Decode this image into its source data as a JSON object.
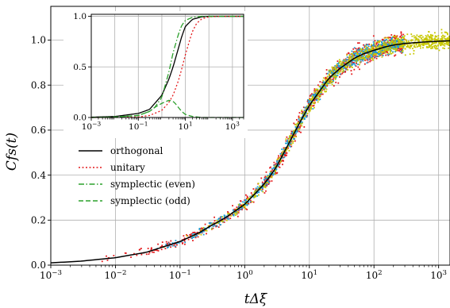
{
  "chart_data": [
    {
      "id": "main",
      "type": "scatter",
      "xlabel": "tΔξ",
      "ylabel": "Cfs(t)",
      "xscale": "log",
      "xlim": [
        0.001,
        1500
      ],
      "ylim": [
        0.0,
        1.15
      ],
      "grid": true,
      "legend_position": "center-left",
      "x_ticks": [
        {
          "value": 0.001,
          "base": "10",
          "exp": "−3"
        },
        {
          "value": 0.01,
          "base": "10",
          "exp": "−2"
        },
        {
          "value": 0.1,
          "base": "10",
          "exp": "−1"
        },
        {
          "value": 1,
          "base": "10",
          "exp": "0"
        },
        {
          "value": 10,
          "base": "10",
          "exp": "1"
        },
        {
          "value": 100,
          "base": "10",
          "exp": "2"
        },
        {
          "value": 1000,
          "base": "10",
          "exp": "3"
        }
      ],
      "y_ticks": [
        {
          "value": 0.0,
          "label": "0.0"
        },
        {
          "value": 0.2,
          "label": "0.2"
        },
        {
          "value": 0.4,
          "label": "0.4"
        },
        {
          "value": 0.6,
          "label": "0.6"
        },
        {
          "value": 0.8,
          "label": "0.8"
        },
        {
          "value": 1.0,
          "label": "1.0"
        }
      ],
      "scatter_series": [
        {
          "color": "#e41a1c",
          "x_range": [
            0.003,
            300
          ],
          "spread": 0.045
        },
        {
          "color": "#1f9fd4",
          "x_range": [
            0.03,
            300
          ],
          "spread": 0.03
        },
        {
          "color": "#c8c800",
          "x_range": [
            0.05,
            1500
          ],
          "spread": 0.035
        }
      ],
      "series": [
        {
          "name": "orthogonal",
          "color": "#000000",
          "style": "solid",
          "x": [
            0.001,
            0.003,
            0.01,
            0.03,
            0.1,
            0.2,
            0.3,
            0.5,
            1,
            2,
            3,
            5,
            7,
            10,
            15,
            20,
            30,
            50,
            70,
            100,
            150,
            200,
            300,
            500,
            1000,
            1500
          ],
          "y": [
            0.01,
            0.018,
            0.033,
            0.057,
            0.105,
            0.145,
            0.175,
            0.21,
            0.27,
            0.36,
            0.43,
            0.55,
            0.63,
            0.71,
            0.78,
            0.83,
            0.875,
            0.92,
            0.94,
            0.955,
            0.97,
            0.978,
            0.985,
            0.99,
            0.995,
            0.997
          ]
        },
        {
          "name": "unitary",
          "color": "#e41a1c",
          "style": "dotted"
        },
        {
          "name": "symplectic (even)",
          "color": "#2ca02c",
          "style": "dashdot"
        },
        {
          "name": "symplectic (odd)",
          "color": "#2ca02c",
          "style": "dashed"
        }
      ]
    },
    {
      "id": "inset",
      "type": "line",
      "xscale": "log",
      "xlim": [
        0.001,
        3000
      ],
      "ylim": [
        0.0,
        1.02
      ],
      "grid": true,
      "x_ticks": [
        {
          "value": 0.001,
          "base": "10",
          "exp": "−3"
        },
        {
          "value": 0.1,
          "base": "10",
          "exp": "−1"
        },
        {
          "value": 10,
          "base": "10",
          "exp": "1"
        },
        {
          "value": 1000,
          "base": "10",
          "exp": "3"
        }
      ],
      "y_ticks": [
        {
          "value": 0.0,
          "label": "0.0"
        },
        {
          "value": 0.5,
          "label": "0.5"
        },
        {
          "value": 1.0,
          "label": "1.0"
        }
      ],
      "series": [
        {
          "name": "orthogonal",
          "color": "#000000",
          "style": "solid",
          "x": [
            0.001,
            0.01,
            0.1,
            0.3,
            1,
            2,
            3,
            5,
            7,
            10,
            20,
            50,
            100,
            300,
            1000,
            3000
          ],
          "y": [
            0.003,
            0.01,
            0.04,
            0.08,
            0.22,
            0.38,
            0.5,
            0.68,
            0.8,
            0.9,
            0.97,
            0.995,
            1.0,
            1.0,
            1.0,
            1.0
          ]
        },
        {
          "name": "unitary",
          "color": "#e41a1c",
          "style": "dotted",
          "x": [
            0.001,
            0.01,
            0.1,
            0.3,
            1,
            2,
            3,
            5,
            7,
            10,
            15,
            20,
            30,
            50,
            100,
            300,
            1000,
            3000
          ],
          "y": [
            0.0,
            0.0,
            0.005,
            0.02,
            0.07,
            0.15,
            0.22,
            0.36,
            0.48,
            0.62,
            0.76,
            0.85,
            0.93,
            0.975,
            0.995,
            1.0,
            1.0,
            1.0
          ]
        },
        {
          "name": "symplectic (even)",
          "color": "#2ca02c",
          "style": "dashdot",
          "x": [
            0.001,
            0.01,
            0.1,
            0.3,
            0.5,
            1,
            2,
            3,
            4,
            5,
            7,
            10,
            20,
            50,
            100,
            1000,
            3000
          ],
          "y": [
            0.0,
            0.005,
            0.02,
            0.06,
            0.1,
            0.2,
            0.45,
            0.64,
            0.74,
            0.82,
            0.91,
            0.96,
            0.99,
            1.0,
            1.0,
            1.0,
            1.0
          ]
        },
        {
          "name": "symplectic (odd)",
          "color": "#2ca02c",
          "style": "dashed",
          "x": [
            0.001,
            0.01,
            0.1,
            0.3,
            0.5,
            1,
            2,
            3,
            4,
            5,
            7,
            10,
            20,
            50,
            100,
            1000,
            3000
          ],
          "y": [
            0.0,
            0.005,
            0.02,
            0.06,
            0.1,
            0.14,
            0.17,
            0.16,
            0.13,
            0.1,
            0.06,
            0.03,
            0.01,
            0.0,
            0.0,
            0.0,
            0.0
          ]
        }
      ]
    }
  ]
}
